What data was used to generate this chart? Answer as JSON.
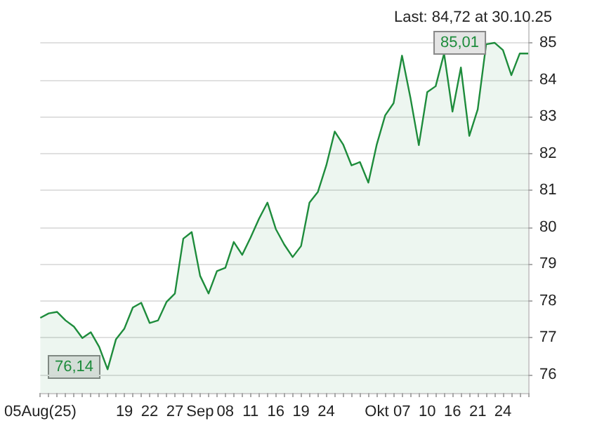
{
  "chart_data": {
    "type": "area",
    "categories": [
      "05Aug(25)",
      null,
      null,
      null,
      null,
      null,
      null,
      null,
      null,
      null,
      "19",
      null,
      null,
      "22",
      null,
      null,
      "27",
      null,
      null,
      "Sep",
      null,
      null,
      "08",
      null,
      null,
      "11",
      null,
      null,
      "16",
      null,
      null,
      "19",
      null,
      null,
      "24",
      null,
      null,
      null,
      null,
      null,
      "Okt",
      null,
      null,
      "07",
      null,
      null,
      "10",
      null,
      null,
      "16",
      null,
      null,
      "21",
      null,
      null,
      "24",
      null,
      null,
      null
    ],
    "series": [
      {
        "color": "#1e8c3c",
        "values": [
          77.54,
          77.66,
          77.7,
          77.47,
          77.3,
          76.99,
          77.15,
          76.75,
          76.14,
          76.96,
          77.25,
          77.82,
          77.95,
          77.4,
          77.47,
          77.97,
          78.2,
          79.69,
          79.87,
          78.68,
          78.2,
          78.81,
          78.9,
          79.6,
          79.25,
          79.72,
          80.23,
          80.67,
          79.95,
          79.53,
          79.19,
          79.49,
          80.67,
          80.96,
          81.68,
          82.6,
          82.25,
          81.68,
          81.77,
          81.21,
          82.25,
          83.04,
          83.37,
          84.66,
          83.52,
          82.23,
          83.67,
          83.83,
          84.72,
          83.14,
          84.34,
          82.48,
          83.2,
          84.97,
          85.01,
          84.81,
          84.13,
          84.72,
          84.72
        ]
      }
    ],
    "ylim": [
      75.5,
      85.6
    ],
    "yticks": [
      76,
      77,
      78,
      79,
      80,
      81,
      82,
      83,
      84,
      85
    ],
    "grid": "y",
    "annotations": [
      "Last: 84,72 at 30.10.25",
      {
        "text": "85,01",
        "y": 85.01
      },
      "76,14"
    ]
  }
}
